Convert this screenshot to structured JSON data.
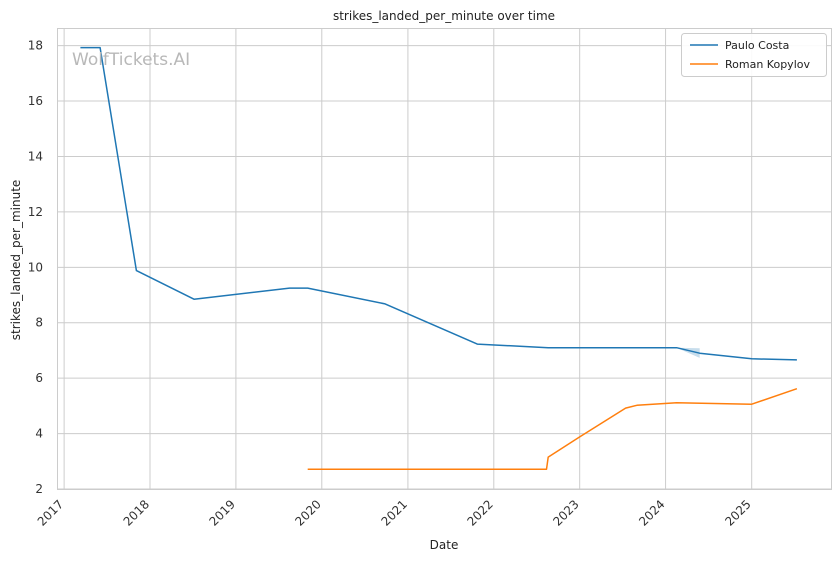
{
  "chart_data": {
    "type": "line",
    "title": "strikes_landed_per_minute over time",
    "xlabel": "Date",
    "ylabel": "strikes_landed_per_minute",
    "watermark": "WolfTickets.AI",
    "x_ticks": [
      "2017",
      "2018",
      "2019",
      "2020",
      "2021",
      "2022",
      "2023",
      "2024",
      "2025"
    ],
    "y_ticks": [
      "2",
      "4",
      "6",
      "8",
      "10",
      "12",
      "14",
      "16",
      "18"
    ],
    "xlim": [
      "2016-12-06",
      "2025-12-04"
    ],
    "ylim": [
      2,
      18.6
    ],
    "grid": true,
    "legend_position": "top-right",
    "series": [
      {
        "name": "Paulo Costa",
        "color": "#1f77b4",
        "points": [
          {
            "x": "2017-03-11",
            "y": 17.93
          },
          {
            "x": "2017-06-03",
            "y": 17.93
          },
          {
            "x": "2017-11-04",
            "y": 9.88
          },
          {
            "x": "2018-07-07",
            "y": 8.85
          },
          {
            "x": "2019-08-17",
            "y": 9.25
          },
          {
            "x": "2019-11-02",
            "y": 9.25
          },
          {
            "x": "2020-09-26",
            "y": 8.68
          },
          {
            "x": "2021-10-23",
            "y": 7.23
          },
          {
            "x": "2022-08-20",
            "y": 7.1
          },
          {
            "x": "2023-08-19",
            "y": 7.1
          },
          {
            "x": "2024-02-17",
            "y": 7.1
          },
          {
            "x": "2024-05-25",
            "y": 6.9
          },
          {
            "x": "2025-01-01",
            "y": 6.7
          },
          {
            "x": "2025-07-12",
            "y": 6.66
          }
        ],
        "band": [
          {
            "x": "2024-02-17",
            "low": 7.1,
            "high": 7.1
          },
          {
            "x": "2024-05-25",
            "low": 6.73,
            "high": 7.08
          }
        ]
      },
      {
        "name": "Roman Kopylov",
        "color": "#ff7f0e",
        "points": [
          {
            "x": "2019-11-02",
            "y": 2.71
          },
          {
            "x": "2022-08-13",
            "y": 2.71
          },
          {
            "x": "2022-08-20",
            "y": 3.15
          },
          {
            "x": "2023-01-01",
            "y": 3.88
          },
          {
            "x": "2023-07-15",
            "y": 4.92
          },
          {
            "x": "2023-09-01",
            "y": 5.02
          },
          {
            "x": "2024-02-17",
            "y": 5.11
          },
          {
            "x": "2025-01-01",
            "y": 5.06
          },
          {
            "x": "2025-07-12",
            "y": 5.62
          }
        ]
      }
    ]
  }
}
